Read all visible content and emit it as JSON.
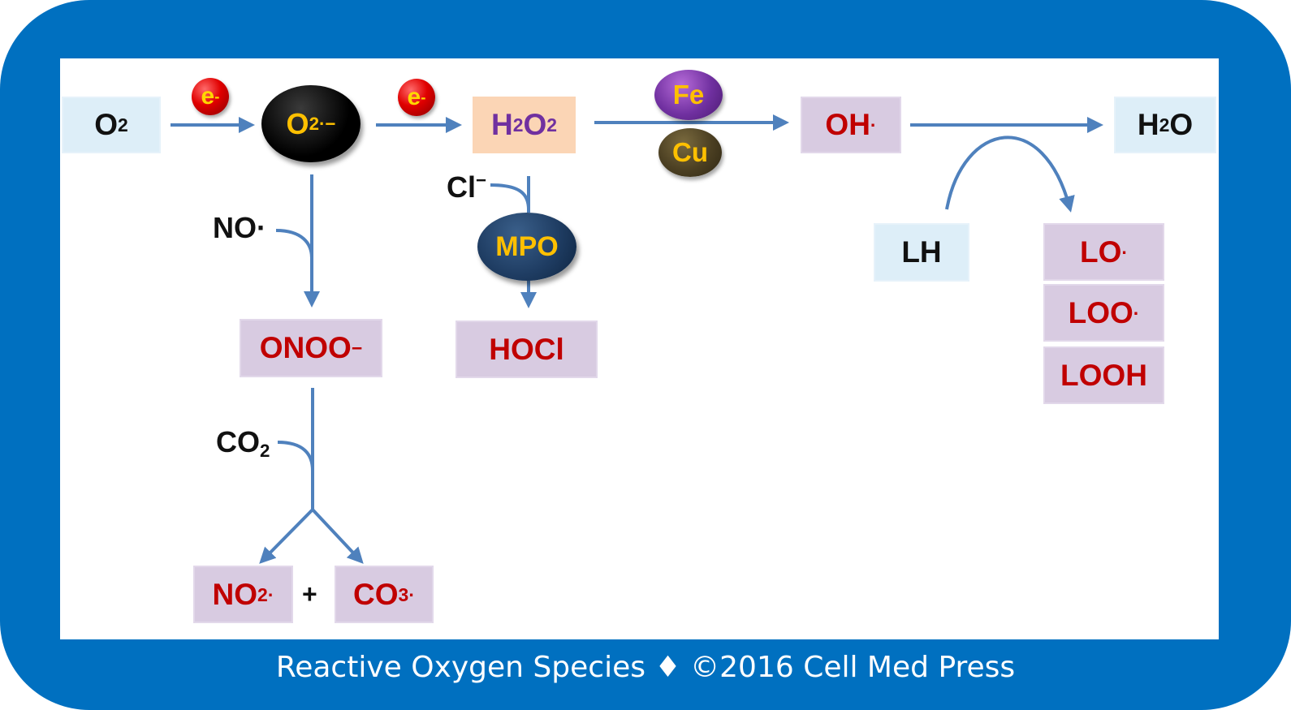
{
  "footer": "Reactive Oxygen Species ♦ ©2016 Cell Med Press",
  "colors": {
    "frame": "#0070c0",
    "arrow": "#4f81bd",
    "species_red": "#c00000",
    "h2o2_purple": "#7030a0",
    "ball_gold": "#ffc000"
  },
  "nodes": {
    "o2": {
      "base": "O",
      "sub": "2"
    },
    "superoxide": {
      "base": "O",
      "sub": "2",
      "sup": "·−"
    },
    "h2o2": {
      "part1": "H",
      "sub1": "2",
      "part2": "O",
      "sub2": "2"
    },
    "oh": {
      "base": "OH",
      "sup": "·"
    },
    "h2o": {
      "part1": "H",
      "sub1": "2",
      "part2": "O"
    },
    "onoo": {
      "base": "ONOO",
      "sup": "−"
    },
    "hocl": "HOCl",
    "no2": {
      "base": "NO",
      "sub": "2",
      "sup": "·"
    },
    "plus": "+",
    "co3": {
      "base": "CO",
      "sub": "3",
      "sup": "·"
    },
    "lh": "LH",
    "lo": {
      "base": "LO",
      "sup": "·"
    },
    "loo": {
      "base": "LOO",
      "sup": "·"
    },
    "looh": "LOOH"
  },
  "reagents": {
    "electron_1": {
      "base": "e",
      "sup": "-"
    },
    "electron_2": {
      "base": "e",
      "sup": "-"
    },
    "fe": "Fe",
    "cu": "Cu",
    "mpo": "MPO",
    "no_radical": "NO·",
    "chloride": {
      "base": "Cl",
      "sup": "−"
    },
    "co2": {
      "base": "CO",
      "sub": "2"
    }
  }
}
